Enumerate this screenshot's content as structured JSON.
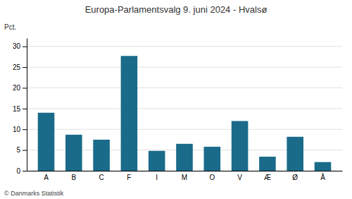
{
  "chart_data": {
    "type": "bar",
    "title": "Europa-Parlamentsvalg 9. juni 2024 - Hvalsø",
    "categories": [
      "A",
      "B",
      "C",
      "F",
      "I",
      "M",
      "O",
      "V",
      "Æ",
      "Ø",
      "Å"
    ],
    "values": [
      14.0,
      8.7,
      7.5,
      27.7,
      4.8,
      6.5,
      5.8,
      12.0,
      3.4,
      8.2,
      2.1
    ],
    "color": "#1a6b8a",
    "ylabel": "Pct.",
    "ylim": [
      0,
      32
    ],
    "yticks": [
      0,
      5,
      10,
      15,
      20,
      25,
      30
    ],
    "grid": true,
    "annotations": [
      "© Danmarks Statistik"
    ]
  }
}
